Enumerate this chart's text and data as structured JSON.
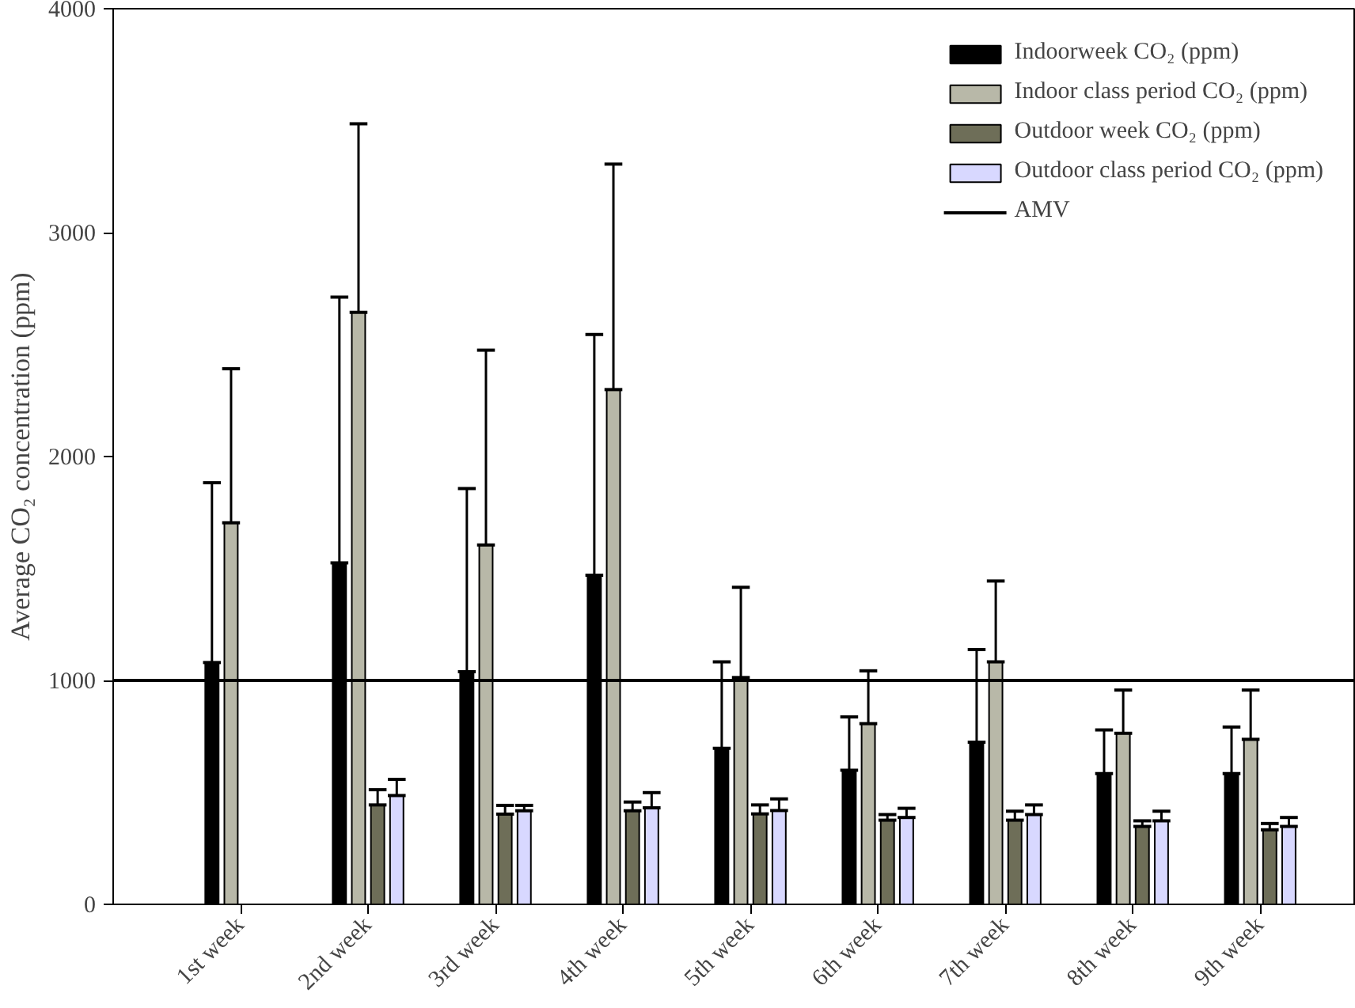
{
  "chart_data": {
    "type": "bar",
    "ylabel": "Average CO₂ concentration (ppm)",
    "categories": [
      "1st week",
      "2nd week",
      "3rd week",
      "4th week",
      "5th week",
      "6th week",
      "7th week",
      "8th week",
      "9th week"
    ],
    "series": [
      {
        "name": "Indoorweek CO₂ (ppm)",
        "color": "#000000",
        "values": [
          1080,
          1525,
          1039,
          1470,
          697,
          599,
          724,
          584,
          584
        ],
        "errors": [
          [
            1080,
            1883
          ],
          [
            1525,
            2712
          ],
          [
            1039,
            1857
          ],
          [
            1470,
            2545
          ],
          [
            697,
            1083
          ],
          [
            599,
            837
          ],
          [
            724,
            1138
          ],
          [
            584,
            779
          ],
          [
            584,
            792
          ]
        ]
      },
      {
        "name": "Indoor class period CO₂ (ppm)",
        "color": "#b8b8a8",
        "values": [
          1704,
          2644,
          1605,
          2299,
          1013,
          807,
          1083,
          764,
          737
        ],
        "errors": [
          [
            1704,
            2392
          ],
          [
            2644,
            3486
          ],
          [
            1605,
            2475
          ],
          [
            2299,
            3306
          ],
          [
            1013,
            1416
          ],
          [
            807,
            1043
          ],
          [
            1083,
            1444
          ],
          [
            764,
            957
          ],
          [
            737,
            957
          ]
        ]
      },
      {
        "name": "Outdoor week CO₂ (ppm)",
        "color": "#6e6e58",
        "values": [
          null,
          444,
          403,
          418,
          404,
          376,
          376,
          348,
          333
        ],
        "errors": [
          null,
          [
            444,
            512
          ],
          [
            403,
            442
          ],
          [
            418,
            457
          ],
          [
            404,
            444
          ],
          [
            376,
            401
          ],
          [
            376,
            416
          ],
          [
            348,
            373
          ],
          [
            333,
            361
          ]
        ]
      },
      {
        "name": "Outdoor class period CO₂ (ppm)",
        "color": "#d8d8ff",
        "values": [
          null,
          486,
          418,
          431,
          419,
          388,
          401,
          373,
          348
        ],
        "errors": [
          null,
          [
            486,
            558
          ],
          [
            418,
            442
          ],
          [
            431,
            499
          ],
          [
            419,
            471
          ],
          [
            388,
            429
          ],
          [
            401,
            444
          ],
          [
            373,
            416
          ],
          [
            348,
            388
          ]
        ]
      }
    ],
    "ref_lines": [
      {
        "axis": "y",
        "value": 1000,
        "label": "AMV",
        "color": "#000000"
      }
    ],
    "ylim": [
      0,
      4000
    ],
    "yticks": [
      0,
      1000,
      2000,
      3000,
      4000
    ],
    "grid": false,
    "legend": "top right"
  }
}
